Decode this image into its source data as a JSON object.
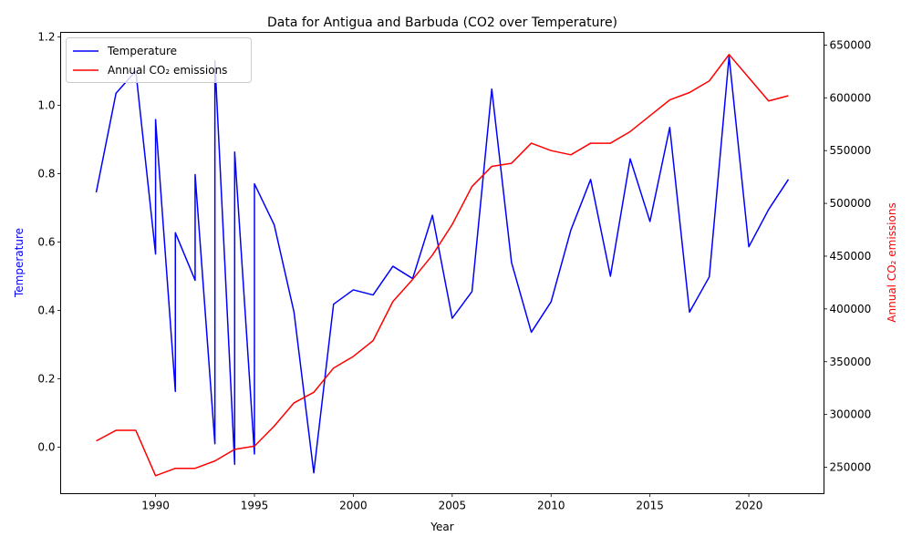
{
  "chart_data": {
    "type": "line",
    "title": "Data for Antigua and Barbuda (CO2 over Temperature)",
    "xlabel": "Year",
    "ylabel_left": "Temperature",
    "ylabel_right": "Annual CO₂ emissions",
    "xlim": [
      1985.2,
      2023.8
    ],
    "ylim_left": [
      -0.136,
      1.213
    ],
    "ylim_right": [
      225000,
      662000
    ],
    "x_ticks": [
      1990,
      1995,
      2000,
      2005,
      2010,
      2015,
      2020
    ],
    "y_left_ticks": [
      0.0,
      0.2,
      0.4,
      0.6,
      0.8,
      1.0,
      1.2
    ],
    "y_left_tick_labels": [
      "0.0",
      "0.2",
      "0.4",
      "0.6",
      "0.8",
      "1.0",
      "1.2"
    ],
    "y_right_ticks": [
      250000,
      300000,
      350000,
      400000,
      450000,
      500000,
      550000,
      600000,
      650000
    ],
    "y_right_tick_labels": [
      "250000",
      "300000",
      "350000",
      "400000",
      "450000",
      "500000",
      "550000",
      "600000",
      "650000"
    ],
    "grid": false,
    "legend_position": "top-left",
    "series": [
      {
        "name": "Temperature",
        "color": "#0000ff",
        "axis": "left",
        "x": [
          1987,
          1988,
          1989,
          1990,
          1990,
          1991,
          1991,
          1992,
          1992,
          1993,
          1993,
          1994,
          1994,
          1995,
          1995,
          1996,
          1997,
          1998,
          1999,
          2000,
          2001,
          2002,
          2003,
          2004,
          2005,
          2006,
          2007,
          2008,
          2009,
          2010,
          2011,
          2012,
          2013,
          2014,
          2015,
          2016,
          2017,
          2018,
          2019,
          2020,
          2021,
          2022
        ],
        "values": [
          0.745,
          1.035,
          1.1,
          0.565,
          0.958,
          0.163,
          0.627,
          0.488,
          0.797,
          0.01,
          1.13,
          -0.05,
          0.863,
          -0.02,
          0.77,
          0.65,
          0.395,
          -0.075,
          0.418,
          0.46,
          0.445,
          0.529,
          0.493,
          0.678,
          0.377,
          0.455,
          1.047,
          0.54,
          0.336,
          0.425,
          0.635,
          0.783,
          0.5,
          0.843,
          0.66,
          0.935,
          0.395,
          0.498,
          1.143,
          0.586,
          0.695,
          0.783
        ]
      },
      {
        "name": "Annual CO₂ emissions",
        "color": "#ff0000",
        "axis": "right",
        "x": [
          1987,
          1988,
          1989,
          1990,
          1991,
          1992,
          1993,
          1994,
          1995,
          1996,
          1997,
          1998,
          1999,
          2000,
          2001,
          2002,
          2003,
          2004,
          2005,
          2006,
          2007,
          2008,
          2009,
          2010,
          2011,
          2012,
          2013,
          2014,
          2015,
          2016,
          2017,
          2018,
          2019,
          2020,
          2021,
          2022
        ],
        "values": [
          275000,
          285000,
          285000,
          242000,
          249000,
          249000,
          256000,
          267000,
          270000,
          289000,
          311000,
          321000,
          344000,
          355000,
          370000,
          407000,
          428000,
          451000,
          480000,
          516000,
          535000,
          538000,
          557000,
          550000,
          546000,
          557000,
          557000,
          568000,
          583000,
          598000,
          605000,
          616000,
          641000,
          619000,
          597000,
          602000
        ]
      }
    ]
  }
}
